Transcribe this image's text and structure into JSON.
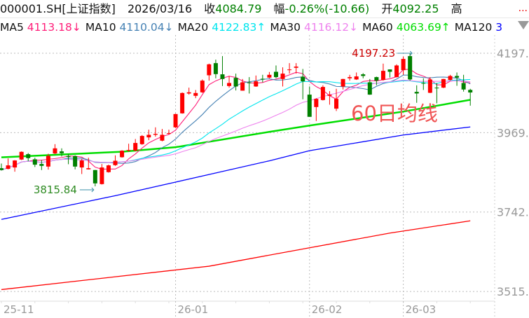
{
  "header": {
    "symbol": "000001.SH[上证指数]",
    "date": "2026/03/16",
    "close_label": "收",
    "close": "4084.79",
    "change_label": "幅",
    "change": "-0.26%(-10.66)",
    "open_label": "开",
    "open": "4092.25",
    "high_label": "高",
    "more": "..."
  },
  "ma_bar": [
    {
      "label": "MA5",
      "value": "4113.18↓",
      "color": "#ff1f7a"
    },
    {
      "label": "MA10",
      "value": "4110.04↓",
      "color": "#4682b4"
    },
    {
      "label": "MA20",
      "value": "4122.83↑",
      "color": "#00e5ee"
    },
    {
      "label": "MA30",
      "value": "4116.12↓",
      "color": "#ee82ee"
    },
    {
      "label": "MA60",
      "value": "4063.69↑",
      "color": "#00dd00"
    },
    {
      "label": "MA120",
      "value": "3",
      "color": "#0000ff"
    }
  ],
  "chart_data": {
    "type": "candlestick",
    "ylim": [
      3505,
      4215
    ],
    "y_ticks": [
      "4197.",
      "3969.",
      "3742.",
      "3515."
    ],
    "y_tick_values": [
      4197.23,
      3969.7,
      3742.2,
      3514.7
    ],
    "grid": "dotted",
    "x_ticks": [
      {
        "label": "25-11",
        "index": 0
      },
      {
        "label": "26-01",
        "index": 26
      },
      {
        "label": "26-02",
        "index": 46
      },
      {
        "label": "26-03",
        "index": 60
      }
    ],
    "up_color": "#ff0000",
    "down_color": "#008000",
    "ohlc": [
      [
        3867.8,
        3881.2,
        3861,
        3862.5
      ],
      [
        3865.8,
        3895.9,
        3864.5,
        3875.9
      ],
      [
        3869.9,
        3891,
        3857.8,
        3889.9
      ],
      [
        3892.6,
        3916,
        3891,
        3914.7
      ],
      [
        3908,
        3911.3,
        3888,
        3896.6
      ],
      [
        3893.3,
        3898,
        3871.2,
        3877.9
      ],
      [
        3879.9,
        3891.3,
        3862.5,
        3874.5
      ],
      [
        3872.5,
        3909.3,
        3863.8,
        3903.3
      ],
      [
        3910,
        3936.7,
        3908,
        3924.7
      ],
      [
        3916,
        3924.7,
        3901.3,
        3910.7
      ],
      [
        3902.6,
        3908,
        3879.2,
        3899.9
      ],
      [
        3902.6,
        3904.6,
        3864.5,
        3872.5
      ],
      [
        3869.9,
        3894.6,
        3851.1,
        3889.9
      ],
      [
        3864.5,
        3897.9,
        3864,
        3867.8
      ],
      [
        3862.5,
        3863,
        3815.84,
        3824.3
      ],
      [
        3822.3,
        3879.9,
        3821,
        3869.9
      ],
      [
        3856.5,
        3878,
        3855,
        3875.9
      ],
      [
        3876.5,
        3904.6,
        3874.5,
        3889.2
      ],
      [
        3899.3,
        3919.4,
        3898,
        3918
      ],
      [
        3918,
        3938,
        3914.7,
        3920
      ],
      [
        3918,
        3951.5,
        3916,
        3940.1
      ],
      [
        3936.7,
        3962.8,
        3934.7,
        3960.2
      ],
      [
        3956.1,
        3978.2,
        3948.1,
        3963.5
      ],
      [
        3963.5,
        3984.9,
        3958.2,
        3966.2
      ],
      [
        3946.8,
        3980.2,
        3944.8,
        3963.5
      ],
      [
        3966.9,
        3978.2,
        3964.8,
        3968.2
      ],
      [
        3984.9,
        4024,
        3983,
        4023
      ],
      [
        4025,
        4085,
        4024,
        4083.3
      ],
      [
        4081.9,
        4098.6,
        4078.6,
        4085.3
      ],
      [
        4075.2,
        4091.9,
        4068.5,
        4083.3
      ],
      [
        4085.3,
        4122.1,
        4083.3,
        4118.7
      ],
      [
        4134.1,
        4167.5,
        4118.7,
        4165.5
      ],
      [
        4168.9,
        4178.9,
        4125.4,
        4137.4
      ],
      [
        4136.8,
        4189,
        4103.3,
        4123.4
      ],
      [
        4103.3,
        4132.1,
        4098.6,
        4112
      ],
      [
        4126.7,
        4138.8,
        4090.6,
        4102
      ],
      [
        4090,
        4123.4,
        4090,
        4114
      ],
      [
        4113.4,
        4128.8,
        4081.9,
        4111.4
      ],
      [
        4102,
        4133.4,
        4101,
        4116.7
      ],
      [
        4124.1,
        4135.4,
        4114,
        4122.1
      ],
      [
        4127.4,
        4143.5,
        4125.4,
        4135.4
      ],
      [
        4144.1,
        4162.2,
        4125.4,
        4128.8
      ],
      [
        4123.4,
        4156.8,
        4102,
        4138.8
      ],
      [
        4148.8,
        4168.9,
        4138.8,
        4150.8
      ],
      [
        4155.5,
        4168.9,
        4138.8,
        4158.9
      ],
      [
        4130.1,
        4152.2,
        4065.2,
        4116.7
      ],
      [
        4078.6,
        4102,
        4015,
        4015
      ],
      [
        4043.1,
        4068.5,
        4003,
        4066.5
      ],
      [
        4063.2,
        4105.3,
        4061.8,
        4100.6
      ],
      [
        4075.2,
        4088.6,
        4049.8,
        4078.6
      ],
      [
        4038.4,
        4095.3,
        4031.7,
        4066.5
      ],
      [
        4102,
        4124,
        4093.3,
        4123.4
      ],
      [
        4125.4,
        4135.4,
        4118.7,
        4128.8
      ],
      [
        4122.1,
        4142.1,
        4120.7,
        4130.8
      ],
      [
        4136.8,
        4140.1,
        4125.4,
        4132.1
      ],
      [
        4114,
        4123.4,
        4078,
        4078.6
      ],
      [
        4128.8,
        4130.1,
        4105.3,
        4118.7
      ],
      [
        4120.7,
        4167.5,
        4118.7,
        4146.8
      ],
      [
        4150.8,
        4151,
        4127.4,
        4144.1
      ],
      [
        4128.8,
        4165.5,
        4128,
        4162.2
      ],
      [
        4148.8,
        4187.6,
        4135.4,
        4180.9
      ],
      [
        4189,
        4197.23,
        4118.7,
        4122.1
      ],
      [
        4086.6,
        4105.3,
        4055.2,
        4081.9
      ],
      [
        4112,
        4125.4,
        4092,
        4110
      ],
      [
        4083.9,
        4128.8,
        4083,
        4122.1
      ],
      [
        4098.6,
        4112,
        4053.8,
        4096.6
      ],
      [
        4098.6,
        4124,
        4097.3,
        4123.4
      ],
      [
        4120.7,
        4135.4,
        4118.7,
        4132.1
      ],
      [
        4132.1,
        4142.1,
        4104,
        4127.4
      ],
      [
        4112,
        4135.4,
        4087.3,
        4093.3
      ],
      [
        4092.25,
        4095.3,
        4047,
        4084.79
      ]
    ],
    "moving_averages": [
      {
        "name": "MA5",
        "period": 5,
        "color": "#ff1f7a"
      },
      {
        "name": "MA10",
        "period": 10,
        "color": "#4682b4"
      },
      {
        "name": "MA20",
        "period": 20,
        "color": "#00e5ee"
      },
      {
        "name": "MA30",
        "period": 30,
        "color": "#ee82ee"
      }
    ],
    "long_lines": [
      {
        "name": "MA60",
        "color": "#00dd00",
        "points": [
          [
            0,
            3899
          ],
          [
            18,
            3915
          ],
          [
            26,
            3928
          ],
          [
            40,
            3972
          ],
          [
            46,
            3990
          ],
          [
            60,
            4030
          ],
          [
            70,
            4063.69
          ]
        ]
      },
      {
        "name": "MA120",
        "color": "#0000ff",
        "points": [
          [
            0,
            3721
          ],
          [
            17,
            3789
          ],
          [
            26,
            3828
          ],
          [
            40,
            3889
          ],
          [
            46,
            3918
          ],
          [
            60,
            3963
          ],
          [
            70,
            3986
          ]
        ]
      },
      {
        "color": "#ff0000",
        "points": [
          [
            0,
            3520
          ],
          [
            31,
            3587
          ],
          [
            58,
            3682
          ],
          [
            70,
            3717
          ]
        ]
      }
    ],
    "annotations": {
      "high": {
        "label": "4197.23",
        "index": 61,
        "value": 4197.23,
        "color": "#cc0000"
      },
      "low": {
        "label": "3815.84",
        "index": 14,
        "value": 3815.84,
        "color": "#2e8b22"
      },
      "note": {
        "label": "60日均线",
        "color": "#f05555"
      }
    }
  }
}
